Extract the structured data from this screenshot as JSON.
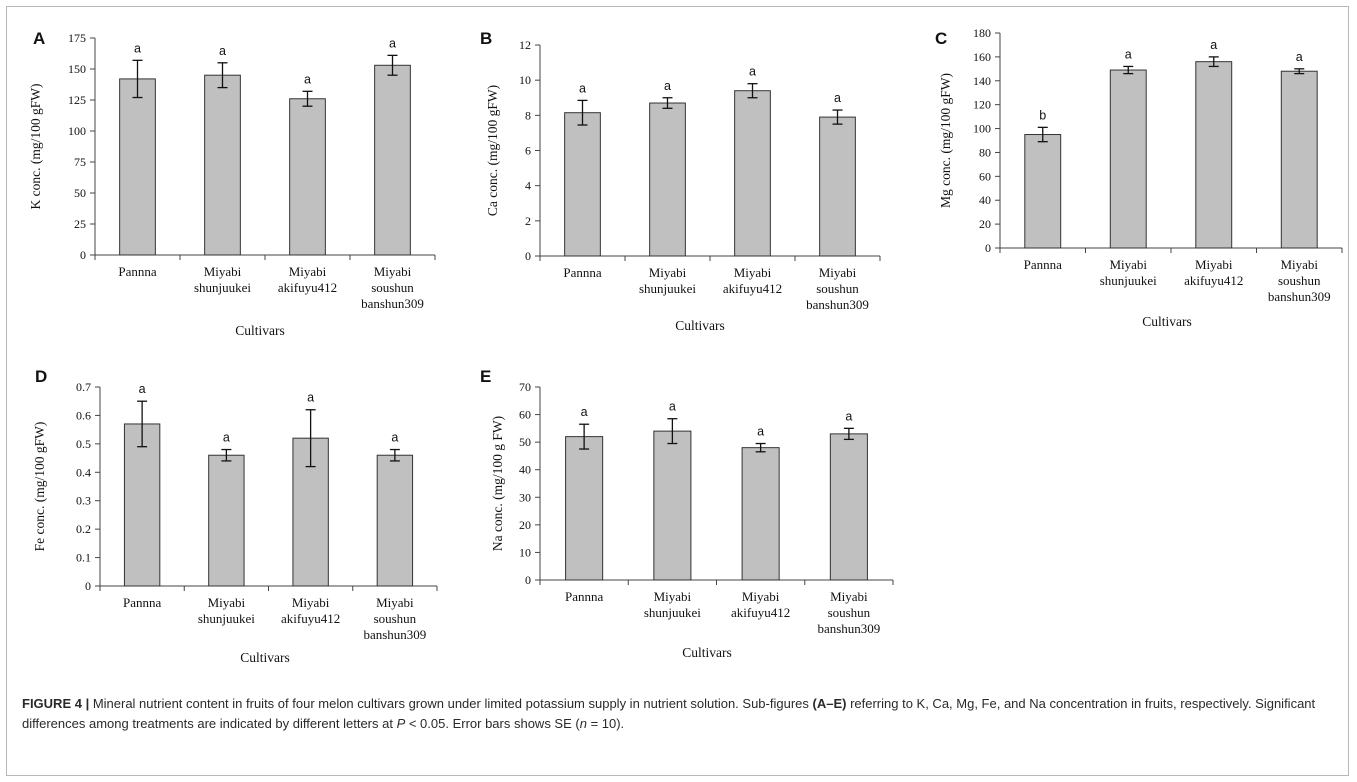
{
  "chart_data": [
    {
      "panel": "A",
      "type": "bar",
      "categories": [
        [
          "Pannna"
        ],
        [
          "Miyabi",
          "shunjuukei"
        ],
        [
          "Miyabi",
          "akifuyu412"
        ],
        [
          "Miyabi",
          "soushun",
          "banshun309"
        ]
      ],
      "values": [
        142,
        145,
        126,
        153
      ],
      "errors": [
        15,
        10,
        6,
        8
      ],
      "letters": [
        "a",
        "a",
        "a",
        "a"
      ],
      "ylabel": "K conc. (mg/100 gFW)",
      "xlabel": "Cultivars",
      "ylim": [
        0,
        175
      ],
      "yticks": [
        0,
        25,
        50,
        75,
        100,
        125,
        150,
        175
      ],
      "ytick_labels": [
        "0",
        "25",
        "50",
        "75",
        "100",
        "125",
        "150",
        "175"
      ],
      "bar_color": "#c0c0c0"
    },
    {
      "panel": "B",
      "type": "bar",
      "categories": [
        [
          "Pannna"
        ],
        [
          "Miyabi",
          "shunjuukei"
        ],
        [
          "Miyabi",
          "akifuyu412"
        ],
        [
          "Miyabi",
          "soushun",
          "banshun309"
        ]
      ],
      "values": [
        8.15,
        8.7,
        9.4,
        7.9
      ],
      "errors": [
        0.7,
        0.3,
        0.4,
        0.4
      ],
      "letters": [
        "a",
        "a",
        "a",
        "a"
      ],
      "ylabel": "Ca conc. (mg/100 gFW)",
      "xlabel": "Cultivars",
      "ylim": [
        0,
        12
      ],
      "yticks": [
        0,
        2,
        4,
        6,
        8,
        10,
        12
      ],
      "ytick_labels": [
        "0",
        "2",
        "4",
        "6",
        "8",
        "10",
        "12"
      ],
      "bar_color": "#c0c0c0"
    },
    {
      "panel": "C",
      "type": "bar",
      "categories": [
        [
          "Pannna"
        ],
        [
          "Miyabi",
          "shunjuukei"
        ],
        [
          "Miyabi",
          "akifuyu412"
        ],
        [
          "Miyabi",
          "soushun",
          "banshun309"
        ]
      ],
      "values": [
        95,
        149,
        156,
        148
      ],
      "errors": [
        6,
        3,
        4,
        2
      ],
      "letters": [
        "b",
        "a",
        "a",
        "a"
      ],
      "ylabel": "Mg conc. (mg/100 gFW)",
      "xlabel": "Cultivars",
      "ylim": [
        0,
        180
      ],
      "yticks": [
        0,
        20,
        40,
        60,
        80,
        100,
        120,
        140,
        160,
        180
      ],
      "ytick_labels": [
        "0",
        "20",
        "40",
        "60",
        "80",
        "100",
        "120",
        "140",
        "160",
        "180"
      ],
      "bar_color": "#c0c0c0"
    },
    {
      "panel": "D",
      "type": "bar",
      "categories": [
        [
          "Pannna"
        ],
        [
          "Miyabi",
          "shunjuukei"
        ],
        [
          "Miyabi",
          "akifuyu412"
        ],
        [
          "Miyabi",
          "soushun",
          "banshun309"
        ]
      ],
      "values": [
        0.57,
        0.46,
        0.52,
        0.46
      ],
      "errors": [
        0.08,
        0.02,
        0.1,
        0.02
      ],
      "letters": [
        "a",
        "a",
        "a",
        "a"
      ],
      "ylabel": "Fe conc. (mg/100 gFW)",
      "xlabel": "Cultivars",
      "ylim": [
        0,
        0.7
      ],
      "yticks": [
        0,
        0.1,
        0.2,
        0.3,
        0.4,
        0.5,
        0.6,
        0.7
      ],
      "ytick_labels": [
        "0",
        "0.1",
        "0.2",
        "0.3",
        "0.4",
        "0.5",
        "0.6",
        "0.7"
      ],
      "bar_color": "#c0c0c0"
    },
    {
      "panel": "E",
      "type": "bar",
      "categories": [
        [
          "Pannna"
        ],
        [
          "Miyabi",
          "shunjuukei"
        ],
        [
          "Miyabi",
          "akifuyu412"
        ],
        [
          "Miyabi",
          "soushun",
          "banshun309"
        ]
      ],
      "values": [
        52,
        54,
        48,
        53
      ],
      "errors": [
        4.5,
        4.5,
        1.5,
        2
      ],
      "letters": [
        "a",
        "a",
        "a",
        "a"
      ],
      "ylabel": "Na conc. (mg/100 g FW)",
      "xlabel": "Cultivars",
      "ylim": [
        0,
        70
      ],
      "yticks": [
        0,
        10,
        20,
        30,
        40,
        50,
        60,
        70
      ],
      "ytick_labels": [
        "0",
        "10",
        "20",
        "30",
        "40",
        "50",
        "60",
        "70"
      ],
      "bar_color": "#c0c0c0"
    }
  ],
  "caption": {
    "label": "FIGURE 4 |",
    "part1": " Mineral nutrient content in fruits of four melon cultivars grown under limited potassium supply in nutrient solution. Sub-figures ",
    "bold_ref": "(A–E)",
    "part2": " referring to K, Ca, Mg, Fe, and Na concentration in fruits, respectively. Significant differences among treatments are indicated by different letters at ",
    "p_symbol": "P",
    "part3": " < 0.05. Error bars shows SE (",
    "n_symbol": "n",
    "part4": " = 10)."
  }
}
